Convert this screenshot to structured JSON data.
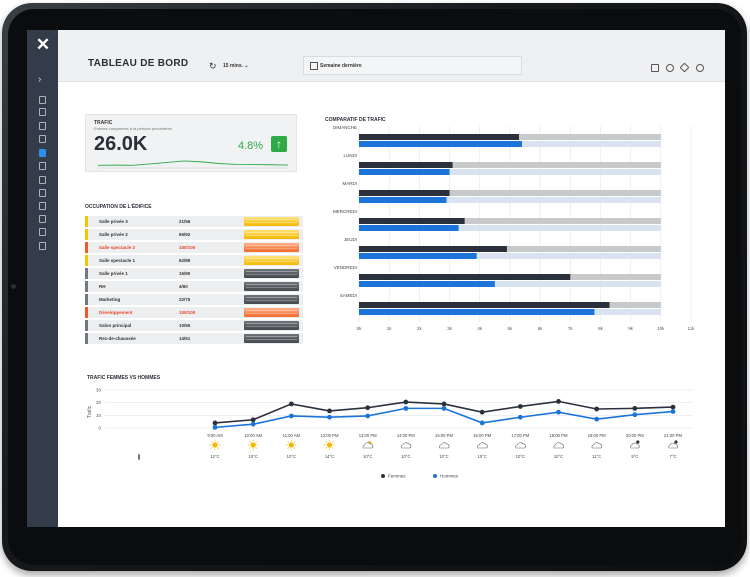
{
  "header": {
    "title": "TABLEAU DE BORD",
    "interval": "15 mins.",
    "date_range": "Semaine dernière"
  },
  "trafic_card": {
    "title": "TRAFIC",
    "subtitle": "Entrées comparées à la période précédente",
    "value": "26.0K",
    "change": "4.8%",
    "sparkline": [
      0.3,
      0.32,
      0.3,
      0.45,
      0.62,
      0.78,
      0.68,
      0.5,
      0.4,
      0.38,
      0.36,
      0.33
    ]
  },
  "occupation": {
    "title": "OCCUPATION DE L'ÉDIFICE",
    "rows": [
      {
        "name": "Salle privée 3",
        "value": "21/56",
        "status": "yellow"
      },
      {
        "name": "Salle privée 2",
        "value": "65/92",
        "status": "yellow"
      },
      {
        "name": "Salle spectacle 2",
        "value": "100/100",
        "status": "red"
      },
      {
        "name": "Salle spectacle 1",
        "value": "62/89",
        "status": "yellow"
      },
      {
        "name": "Salle privée 1",
        "value": "15/90",
        "status": "grey"
      },
      {
        "name": "RH",
        "value": "4/60",
        "status": "grey"
      },
      {
        "name": "Marketing",
        "value": "22/75",
        "status": "grey"
      },
      {
        "name": "Développement",
        "value": "100/100",
        "status": "red"
      },
      {
        "name": "Salon principal",
        "value": "10/65",
        "status": "grey"
      },
      {
        "name": "Rez-de-chaussée",
        "value": "14/61",
        "status": "grey"
      }
    ]
  },
  "colors": {
    "navy": "#2b303d",
    "blue": "#1d74d8",
    "grey_track": "#c8c9cb",
    "blue_track": "#d8e3ef",
    "yellow": "#f5c400",
    "red": "#f05a28",
    "grey": "#737880",
    "green": "#2eaa46"
  },
  "chart_data": [
    {
      "type": "bar",
      "orientation": "horizontal",
      "title": "COMPARATIF DE TRAFIC",
      "categories": [
        "DIMANCHE",
        "LUNDI",
        "MARDI",
        "MERCREDI",
        "JEUDI",
        "VENDREDI",
        "SAMEDI"
      ],
      "series": [
        {
          "color": "#2b303d",
          "values": [
            5300,
            3100,
            3000,
            3500,
            4900,
            7000,
            8300
          ]
        },
        {
          "color": "#1d74d8",
          "values": [
            5400,
            3000,
            2900,
            3300,
            3900,
            4500,
            7800
          ]
        }
      ],
      "xlim": [
        0,
        10000
      ],
      "xticks": [
        "0k",
        "1k",
        "2k",
        "3k",
        "4k",
        "5k",
        "6k",
        "7k",
        "8k",
        "9k",
        "10k",
        "11k"
      ],
      "grid": true
    },
    {
      "type": "line",
      "title": "TRAFIC FEMMES VS HOMMES",
      "ylabel": "Trafic",
      "ylim": [
        0,
        30
      ],
      "yticks": [
        "0",
        "10",
        "20",
        "30"
      ],
      "x": [
        "9:00 AM",
        "10:00 AM",
        "11:00 AM",
        "12:00 PM",
        "13:00 PM",
        "14:00 PM",
        "15:00 PM",
        "16:00 PM",
        "17:00 PM",
        "18:00 PM",
        "19:00 PM",
        "20:00 PM",
        "21:00 PM"
      ],
      "weather": [
        "sun",
        "sun",
        "sun",
        "sun",
        "partly-cloudy",
        "cloud",
        "cloud",
        "cloud",
        "cloud",
        "cloud",
        "cloud",
        "night",
        "night"
      ],
      "temps": [
        "12°C",
        "10°C",
        "10°C",
        "14°C",
        "10°C",
        "10°C",
        "10°C",
        "10°C",
        "10°C",
        "10°C",
        "11°C",
        "9°C",
        "7°C"
      ],
      "series": [
        {
          "name": "Femmes",
          "color": "#2b303d",
          "values": [
            4,
            6.5,
            19,
            13.5,
            16,
            20.5,
            19,
            12.5,
            17,
            21,
            15,
            15.5,
            16.5
          ]
        },
        {
          "name": "Hommes",
          "color": "#1d74d8",
          "values": [
            0.5,
            3,
            9.5,
            8.5,
            9.5,
            15.5,
            15.5,
            4,
            8.5,
            12.5,
            7,
            10.5,
            13
          ]
        }
      ],
      "legend": "bottom",
      "grid": true
    }
  ]
}
